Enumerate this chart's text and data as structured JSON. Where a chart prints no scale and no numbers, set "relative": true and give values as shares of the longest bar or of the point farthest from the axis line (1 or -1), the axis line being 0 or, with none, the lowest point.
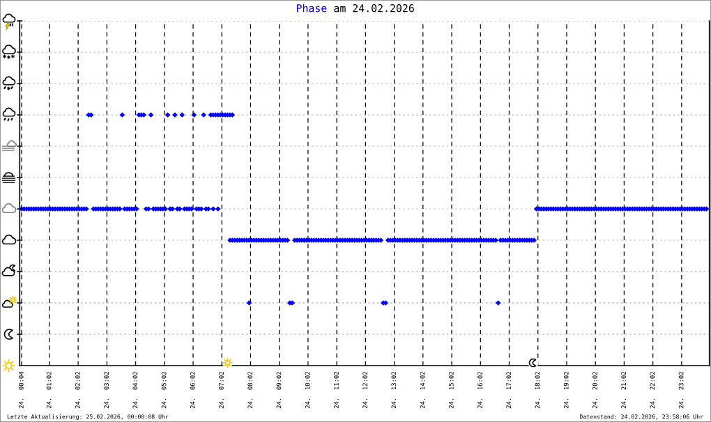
{
  "chart_data": {
    "type": "scatter",
    "title": "am 24.02.2026",
    "annotations": [
      "Letzte Aktualisierung: 25.02.2026, 00:00:08 Uhr",
      "Datenstand: 24.02.2026, 23:58:06 Uhr"
    ],
    "relative": true,
    "xlim": [
      "2026-02-24T00:00",
      "2026-02-25T00:00"
    ],
    "xticks": [
      {
        "value": "2026-02-24T00:04",
        "label": "24.  00:04"
      },
      {
        "value": "2026-02-24T01:02",
        "label": "24.  01:02"
      },
      {
        "value": "2026-02-24T02:02",
        "label": "24.  02:02"
      },
      {
        "value": "2026-02-24T03:02",
        "label": "24.  03:02"
      },
      {
        "value": "2026-02-24T04:02",
        "label": "24.  04:02"
      },
      {
        "value": "2026-02-24T05:02",
        "label": "24.  05:02"
      },
      {
        "value": "2026-02-24T06:02",
        "label": "24.  06:02"
      },
      {
        "value": "2026-02-24T07:02",
        "label": "24.  07:02"
      },
      {
        "value": "2026-02-24T08:02",
        "label": "24.  08:02"
      },
      {
        "value": "2026-02-24T09:02",
        "label": "24.  09:02"
      },
      {
        "value": "2026-02-24T10:02",
        "label": "24.  10:02"
      },
      {
        "value": "2026-02-24T11:02",
        "label": "24.  11:02"
      },
      {
        "value": "2026-02-24T12:02",
        "label": "24.  12:02"
      },
      {
        "value": "2026-02-24T13:02",
        "label": "24.  13:02"
      },
      {
        "value": "2026-02-24T14:02",
        "label": "24.  14:02"
      },
      {
        "value": "2026-02-24T15:02",
        "label": "24.  15:02"
      },
      {
        "value": "2026-02-24T16:02",
        "label": "24.  16:02"
      },
      {
        "value": "2026-02-24T17:02",
        "label": "24.  17:02"
      },
      {
        "value": "2026-02-24T18:02",
        "label": "24.  18:02"
      },
      {
        "value": "2026-02-24T19:02",
        "label": "24.  19:02"
      },
      {
        "value": "2026-02-24T20:02",
        "label": "24.  20:02"
      },
      {
        "value": "2026-02-24T21:02",
        "label": "24.  21:02"
      },
      {
        "value": "2026-02-24T22:02",
        "label": "24.  22:02"
      },
      {
        "value": "2026-02-24T23:02",
        "label": "24.  23:02"
      }
    ],
    "tick_labels": "x",
    "grid": true,
    "marker": "diamond",
    "series": [
      {
        "name": "Phase",
        "color": "#0000ff",
        "x": [
          "2026-02-24T00:04",
          "2026-02-24T00:09",
          "2026-02-24T00:14",
          "2026-02-24T00:19",
          "2026-02-24T00:24",
          "2026-02-24T00:29",
          "2026-02-24T00:34",
          "2026-02-24T00:39",
          "2026-02-24T00:44",
          "2026-02-24T00:49",
          "2026-02-24T00:54",
          "2026-02-24T00:59",
          "2026-02-24T01:04",
          "2026-02-24T01:09",
          "2026-02-24T01:14",
          "2026-02-24T01:19",
          "2026-02-24T01:24",
          "2026-02-24T01:29",
          "2026-02-24T01:34",
          "2026-02-24T01:39",
          "2026-02-24T01:44",
          "2026-02-24T01:49",
          "2026-02-24T01:54",
          "2026-02-24T01:59",
          "2026-02-24T02:04",
          "2026-02-24T02:09",
          "2026-02-24T02:14",
          "2026-02-24T02:19",
          "2026-02-24T02:34",
          "2026-02-24T02:39",
          "2026-02-24T02:44",
          "2026-02-24T02:49",
          "2026-02-24T02:54",
          "2026-02-24T02:59",
          "2026-02-24T03:04",
          "2026-02-24T03:09",
          "2026-02-24T03:14",
          "2026-02-24T03:19",
          "2026-02-24T03:24",
          "2026-02-24T03:29",
          "2026-02-24T03:39",
          "2026-02-24T03:44",
          "2026-02-24T03:49",
          "2026-02-24T03:54",
          "2026-02-24T03:59",
          "2026-02-24T04:04",
          "2026-02-24T04:24",
          "2026-02-24T04:29",
          "2026-02-24T04:39",
          "2026-02-24T04:44",
          "2026-02-24T04:49",
          "2026-02-24T04:54",
          "2026-02-24T04:59",
          "2026-02-24T05:04",
          "2026-02-24T05:14",
          "2026-02-24T05:19",
          "2026-02-24T05:29",
          "2026-02-24T05:34",
          "2026-02-24T05:44",
          "2026-02-24T05:49",
          "2026-02-24T05:54",
          "2026-02-24T05:59",
          "2026-02-24T06:09",
          "2026-02-24T06:14",
          "2026-02-24T06:19",
          "2026-02-24T06:29",
          "2026-02-24T06:34",
          "2026-02-24T06:44",
          "2026-02-24T06:54",
          "2026-02-24T02:24",
          "2026-02-24T02:29",
          "2026-02-24T03:34",
          "2026-02-24T04:09",
          "2026-02-24T04:14",
          "2026-02-24T04:19",
          "2026-02-24T04:34",
          "2026-02-24T05:09",
          "2026-02-24T05:24",
          "2026-02-24T05:39",
          "2026-02-24T06:04",
          "2026-02-24T06:24",
          "2026-02-24T06:39",
          "2026-02-24T06:44",
          "2026-02-24T06:49",
          "2026-02-24T06:54",
          "2026-02-24T06:59",
          "2026-02-24T07:04",
          "2026-02-24T07:09",
          "2026-02-24T07:14",
          "2026-02-24T07:19",
          "2026-02-24T07:24",
          "2026-02-24T07:19",
          "2026-02-24T07:24",
          "2026-02-24T07:29",
          "2026-02-24T07:34",
          "2026-02-24T07:39",
          "2026-02-24T07:44",
          "2026-02-24T07:49",
          "2026-02-24T07:54",
          "2026-02-24T07:59",
          "2026-02-24T08:04",
          "2026-02-24T08:09",
          "2026-02-24T08:14",
          "2026-02-24T08:19",
          "2026-02-24T08:24",
          "2026-02-24T08:29",
          "2026-02-24T08:34",
          "2026-02-24T08:39",
          "2026-02-24T08:44",
          "2026-02-24T08:49",
          "2026-02-24T08:54",
          "2026-02-24T08:59",
          "2026-02-24T09:04",
          "2026-02-24T09:09",
          "2026-02-24T09:14",
          "2026-02-24T09:19",
          "2026-02-24T09:34",
          "2026-02-24T09:39",
          "2026-02-24T09:44",
          "2026-02-24T09:49",
          "2026-02-24T09:54",
          "2026-02-24T09:59",
          "2026-02-24T10:04",
          "2026-02-24T10:09",
          "2026-02-24T10:14",
          "2026-02-24T10:19",
          "2026-02-24T10:24",
          "2026-02-24T10:29",
          "2026-02-24T10:34",
          "2026-02-24T10:39",
          "2026-02-24T10:44",
          "2026-02-24T10:49",
          "2026-02-24T10:54",
          "2026-02-24T10:59",
          "2026-02-24T11:04",
          "2026-02-24T11:09",
          "2026-02-24T11:14",
          "2026-02-24T11:19",
          "2026-02-24T11:24",
          "2026-02-24T11:29",
          "2026-02-24T11:34",
          "2026-02-24T11:39",
          "2026-02-24T11:44",
          "2026-02-24T11:49",
          "2026-02-24T11:54",
          "2026-02-24T11:59",
          "2026-02-24T12:04",
          "2026-02-24T12:09",
          "2026-02-24T12:14",
          "2026-02-24T12:19",
          "2026-02-24T12:24",
          "2026-02-24T12:29",
          "2026-02-24T12:34",
          "2026-02-24T12:49",
          "2026-02-24T12:54",
          "2026-02-24T12:59",
          "2026-02-24T13:04",
          "2026-02-24T13:09",
          "2026-02-24T13:14",
          "2026-02-24T13:19",
          "2026-02-24T13:24",
          "2026-02-24T13:29",
          "2026-02-24T13:34",
          "2026-02-24T13:39",
          "2026-02-24T13:44",
          "2026-02-24T13:49",
          "2026-02-24T13:54",
          "2026-02-24T13:59",
          "2026-02-24T14:04",
          "2026-02-24T14:09",
          "2026-02-24T14:14",
          "2026-02-24T14:19",
          "2026-02-24T14:24",
          "2026-02-24T14:29",
          "2026-02-24T14:34",
          "2026-02-24T14:39",
          "2026-02-24T14:44",
          "2026-02-24T14:49",
          "2026-02-24T14:54",
          "2026-02-24T14:59",
          "2026-02-24T15:04",
          "2026-02-24T15:09",
          "2026-02-24T15:14",
          "2026-02-24T15:19",
          "2026-02-24T15:24",
          "2026-02-24T15:29",
          "2026-02-24T15:34",
          "2026-02-24T15:39",
          "2026-02-24T15:44",
          "2026-02-24T15:49",
          "2026-02-24T15:54",
          "2026-02-24T15:59",
          "2026-02-24T16:04",
          "2026-02-24T16:09",
          "2026-02-24T16:14",
          "2026-02-24T16:19",
          "2026-02-24T16:24",
          "2026-02-24T16:29",
          "2026-02-24T16:34",
          "2026-02-24T16:44",
          "2026-02-24T16:49",
          "2026-02-24T16:54",
          "2026-02-24T16:59",
          "2026-02-24T17:04",
          "2026-02-24T17:09",
          "2026-02-24T17:14",
          "2026-02-24T17:19",
          "2026-02-24T17:24",
          "2026-02-24T17:29",
          "2026-02-24T17:34",
          "2026-02-24T17:39",
          "2026-02-24T17:44",
          "2026-02-24T17:49",
          "2026-02-24T17:54",
          "2026-02-24T07:59",
          "2026-02-24T09:24",
          "2026-02-24T09:29",
          "2026-02-24T12:39",
          "2026-02-24T12:44",
          "2026-02-24T16:39",
          "2026-02-24T17:59",
          "2026-02-24T18:04",
          "2026-02-24T18:09",
          "2026-02-24T18:14",
          "2026-02-24T18:19",
          "2026-02-24T18:24",
          "2026-02-24T18:29",
          "2026-02-24T18:34",
          "2026-02-24T18:39",
          "2026-02-24T18:44",
          "2026-02-24T18:49",
          "2026-02-24T18:54",
          "2026-02-24T18:59",
          "2026-02-24T19:04",
          "2026-02-24T19:09",
          "2026-02-24T19:14",
          "2026-02-24T19:19",
          "2026-02-24T19:24",
          "2026-02-24T19:29",
          "2026-02-24T19:34",
          "2026-02-24T19:39",
          "2026-02-24T19:44",
          "2026-02-24T19:49",
          "2026-02-24T19:54",
          "2026-02-24T19:59",
          "2026-02-24T20:04",
          "2026-02-24T20:09",
          "2026-02-24T20:14",
          "2026-02-24T20:19",
          "2026-02-24T20:24",
          "2026-02-24T20:29",
          "2026-02-24T20:34",
          "2026-02-24T20:39",
          "2026-02-24T20:44",
          "2026-02-24T20:49",
          "2026-02-24T20:54",
          "2026-02-24T20:59",
          "2026-02-24T21:04",
          "2026-02-24T21:09",
          "2026-02-24T21:14",
          "2026-02-24T21:19",
          "2026-02-24T21:24",
          "2026-02-24T21:29",
          "2026-02-24T21:34",
          "2026-02-24T21:39",
          "2026-02-24T21:44",
          "2026-02-24T21:49",
          "2026-02-24T21:54",
          "2026-02-24T21:59",
          "2026-02-24T22:04",
          "2026-02-24T22:09",
          "2026-02-24T22:14",
          "2026-02-24T22:19",
          "2026-02-24T22:24",
          "2026-02-24T22:29",
          "2026-02-24T22:34",
          "2026-02-24T22:39",
          "2026-02-24T22:44",
          "2026-02-24T22:49",
          "2026-02-24T22:54",
          "2026-02-24T22:59",
          "2026-02-24T23:04",
          "2026-02-24T23:09",
          "2026-02-24T23:14",
          "2026-02-24T23:19",
          "2026-02-24T23:24",
          "2026-02-24T23:29",
          "2026-02-24T23:34",
          "2026-02-24T23:39",
          "2026-02-24T23:44",
          "2026-02-24T23:49",
          "2026-02-24T23:54"
        ],
        "values": [
          0.625,
          0.625,
          0.625,
          0.625,
          0.625,
          0.625,
          0.625,
          0.625,
          0.625,
          0.625,
          0.625,
          0.625,
          0.625,
          0.625,
          0.625,
          0.625,
          0.625,
          0.625,
          0.625,
          0.625,
          0.625,
          0.625,
          0.625,
          0.625,
          0.625,
          0.625,
          0.625,
          0.625,
          0.625,
          0.625,
          0.625,
          0.625,
          0.625,
          0.625,
          0.625,
          0.625,
          0.625,
          0.625,
          0.625,
          0.625,
          0.625,
          0.625,
          0.625,
          0.625,
          0.625,
          0.625,
          0.625,
          0.625,
          0.625,
          0.625,
          0.625,
          0.625,
          0.625,
          0.625,
          0.625,
          0.625,
          0.625,
          0.625,
          0.625,
          0.625,
          0.625,
          0.625,
          0.625,
          0.625,
          0.625,
          0.625,
          0.625,
          0.625,
          0.625,
          1,
          1,
          1,
          1,
          1,
          1,
          1,
          1,
          1,
          1,
          1,
          1,
          1,
          1,
          1,
          1,
          1,
          1,
          1,
          1,
          1,
          1,
          0.5,
          0.5,
          0.5,
          0.5,
          0.5,
          0.5,
          0.5,
          0.5,
          0.5,
          0.5,
          0.5,
          0.5,
          0.5,
          0.5,
          0.5,
          0.5,
          0.5,
          0.5,
          0.5,
          0.5,
          0.5,
          0.5,
          0.5,
          0.5,
          0.5,
          0.5,
          0.5,
          0.5,
          0.5,
          0.5,
          0.5,
          0.5,
          0.5,
          0.5,
          0.5,
          0.5,
          0.5,
          0.5,
          0.5,
          0.5,
          0.5,
          0.5,
          0.5,
          0.5,
          0.5,
          0.5,
          0.5,
          0.5,
          0.5,
          0.5,
          0.5,
          0.5,
          0.5,
          0.5,
          0.5,
          0.5,
          0.5,
          0.5,
          0.5,
          0.5,
          0.5,
          0.5,
          0.5,
          0.5,
          0.5,
          0.5,
          0.5,
          0.5,
          0.5,
          0.5,
          0.5,
          0.5,
          0.5,
          0.5,
          0.5,
          0.5,
          0.5,
          0.5,
          0.5,
          0.5,
          0.5,
          0.5,
          0.5,
          0.5,
          0.5,
          0.5,
          0.5,
          0.5,
          0.5,
          0.5,
          0.5,
          0.5,
          0.5,
          0.5,
          0.5,
          0.5,
          0.5,
          0.5,
          0.5,
          0.5,
          0.5,
          0.5,
          0.5,
          0.5,
          0.5,
          0.5,
          0.5,
          0.5,
          0.5,
          0.5,
          0.5,
          0.5,
          0.5,
          0.5,
          0.5,
          0.5,
          0.5,
          0.5,
          0.5,
          0.5,
          0.5,
          0.5,
          0.5,
          0.25,
          0.25,
          0.25,
          0.25,
          0.25,
          0.25,
          0.625,
          0.625,
          0.625,
          0.625,
          0.625,
          0.625,
          0.625,
          0.625,
          0.625,
          0.625,
          0.625,
          0.625,
          0.625,
          0.625,
          0.625,
          0.625,
          0.625,
          0.625,
          0.625,
          0.625,
          0.625,
          0.625,
          0.625,
          0.625,
          0.625,
          0.625,
          0.625,
          0.625,
          0.625,
          0.625,
          0.625,
          0.625,
          0.625,
          0.625,
          0.625,
          0.625,
          0.625,
          0.625,
          0.625,
          0.625,
          0.625,
          0.625,
          0.625,
          0.625,
          0.625,
          0.625,
          0.625,
          0.625,
          0.625,
          0.625,
          0.625,
          0.625,
          0.625,
          0.625,
          0.625,
          0.625,
          0.625,
          0.625,
          0.625,
          0.625,
          0.625,
          0.625,
          0.625,
          0.625,
          0.625,
          0.625,
          0.625,
          0.625,
          0.625,
          0.625,
          0.625,
          0.625
        ]
      }
    ]
  }
}
